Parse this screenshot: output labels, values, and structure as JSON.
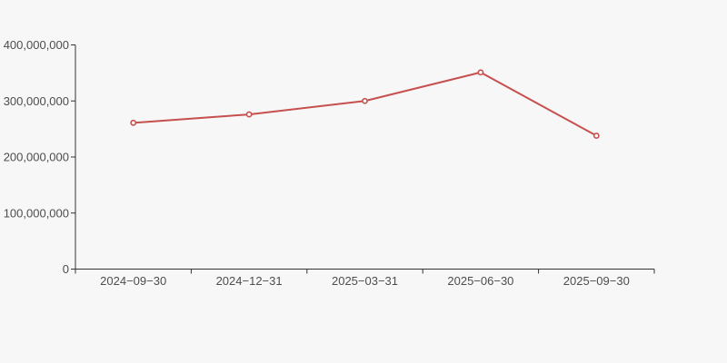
{
  "chart_data": {
    "type": "line",
    "title": "",
    "xlabel": "",
    "ylabel": "",
    "categories": [
      "2024−09−30",
      "2024−12−31",
      "2025−03−31",
      "2025−06−30",
      "2025−09−30"
    ],
    "series": [
      {
        "name": "series-1",
        "values": [
          261000000,
          276000000,
          300000000,
          351000000,
          238000000
        ]
      }
    ],
    "y_ticks": [
      0,
      100000000,
      200000000,
      300000000,
      400000000
    ],
    "y_tick_labels": [
      "0",
      "100,000,000",
      "200,000,000",
      "300,000,000",
      "400,000,000"
    ],
    "ylim": [
      0,
      400000000
    ],
    "grid": false,
    "legend_position": "none",
    "marker_shape": "circle-open",
    "colors": {
      "line": "#c6504e",
      "marker_fill": "#ffffff",
      "axis": "#333333",
      "label": "#4d4d4d",
      "background": "#f7f7f7"
    }
  }
}
